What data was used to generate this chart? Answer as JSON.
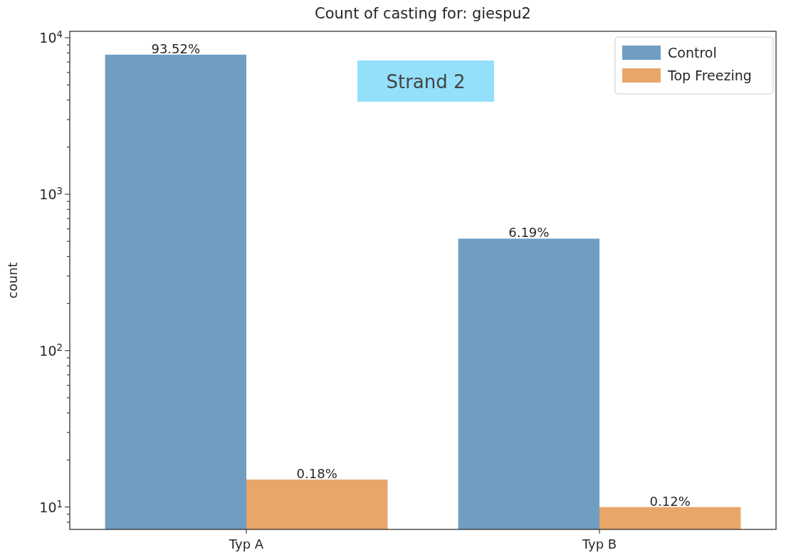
{
  "chart_data": {
    "type": "bar",
    "title": "Count of casting for: giespu2",
    "ylabel": "count",
    "categories": [
      "Typ A",
      "Typ B"
    ],
    "series": [
      {
        "name": "Control",
        "color": "#6f9ec2",
        "values": [
          7800,
          520
        ]
      },
      {
        "name": "Top Freezing",
        "color": "#e8a668",
        "values": [
          15,
          10
        ]
      }
    ],
    "log": true,
    "ylim": [
      7.2,
      11000
    ],
    "yticks": [
      {
        "value": 10,
        "label": "10$^{1}$"
      },
      {
        "value": 100,
        "label": "10$^{2}$"
      },
      {
        "value": 1000,
        "label": "10$^{3}$"
      },
      {
        "value": 10000,
        "label": "10$^{4}$"
      }
    ],
    "grid": false,
    "legend": "top right",
    "annotations": [
      "Strand 2",
      "93.52%",
      "6.19%",
      "0.18%",
      "0.12%"
    ]
  }
}
